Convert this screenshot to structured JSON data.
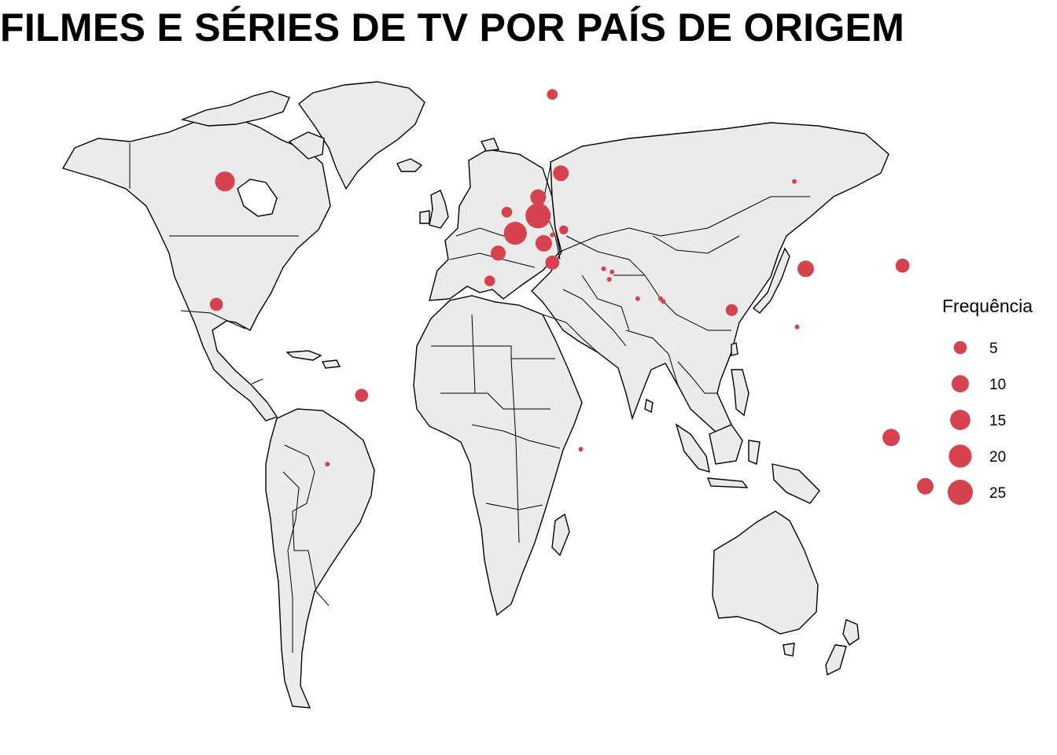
{
  "colors": {
    "land": "#ebebeb",
    "border": "#000000",
    "bubble": "#d7424f",
    "background": "#ffffff"
  },
  "chart_data": {
    "type": "bubble-map",
    "title": "FILMES E SÉRIES DE TV POR PAÍS DE ORIGEM",
    "legend": {
      "title": "Frequência",
      "placement": "right",
      "entries": [
        {
          "label": "5",
          "value": 5
        },
        {
          "label": "10",
          "value": 10
        },
        {
          "label": "15",
          "value": 15
        },
        {
          "label": "20",
          "value": 20
        },
        {
          "label": "25",
          "value": 25
        }
      ]
    },
    "points": [
      {
        "lon": -100,
        "lat": 60,
        "value": 14
      },
      {
        "lon": -103,
        "lat": 23,
        "value": 5
      },
      {
        "lon": -52,
        "lat": -10,
        "value": 5
      },
      {
        "lon": -64,
        "lat": -34,
        "value": 1
      },
      {
        "lon": 134,
        "lat": -25,
        "value": 10
      },
      {
        "lon": 146,
        "lat": -41,
        "value": 9
      },
      {
        "lon": 104,
        "lat": 35,
        "value": 9
      },
      {
        "lon": 138,
        "lat": 36,
        "value": 6
      },
      {
        "lon": 78,
        "lat": 21,
        "value": 4
      },
      {
        "lon": 101,
        "lat": 15,
        "value": 1
      },
      {
        "lon": 100,
        "lat": 60,
        "value": 1
      },
      {
        "lon": -4,
        "lat": 40,
        "value": 7
      },
      {
        "lon": 2,
        "lat": 46,
        "value": 20
      },
      {
        "lon": 10,
        "lat": 51,
        "value": 25
      },
      {
        "lon": 12,
        "lat": 43,
        "value": 9
      },
      {
        "lon": -1,
        "lat": 52,
        "value": 3
      },
      {
        "lon": 10,
        "lat": 56,
        "value": 8
      },
      {
        "lon": 18,
        "lat": 62,
        "value": 8
      },
      {
        "lon": 15,
        "lat": 78,
        "value": 3
      },
      {
        "lon": 15,
        "lat": 37,
        "value": 6
      },
      {
        "lon": -7,
        "lat": 31,
        "value": 3
      },
      {
        "lon": 19,
        "lat": 47,
        "value": 2
      },
      {
        "lon": 15,
        "lat": 45.5,
        "value": 1
      },
      {
        "lon": 33,
        "lat": 35,
        "value": 1
      },
      {
        "lon": 35,
        "lat": 31.5,
        "value": 1
      },
      {
        "lon": 36,
        "lat": 34,
        "value": 1
      },
      {
        "lon": 45,
        "lat": 25,
        "value": 1
      },
      {
        "lon": 53,
        "lat": 25,
        "value": 1
      },
      {
        "lon": 54,
        "lat": 24,
        "value": 1
      },
      {
        "lon": 25,
        "lat": -29,
        "value": 1
      }
    ]
  }
}
